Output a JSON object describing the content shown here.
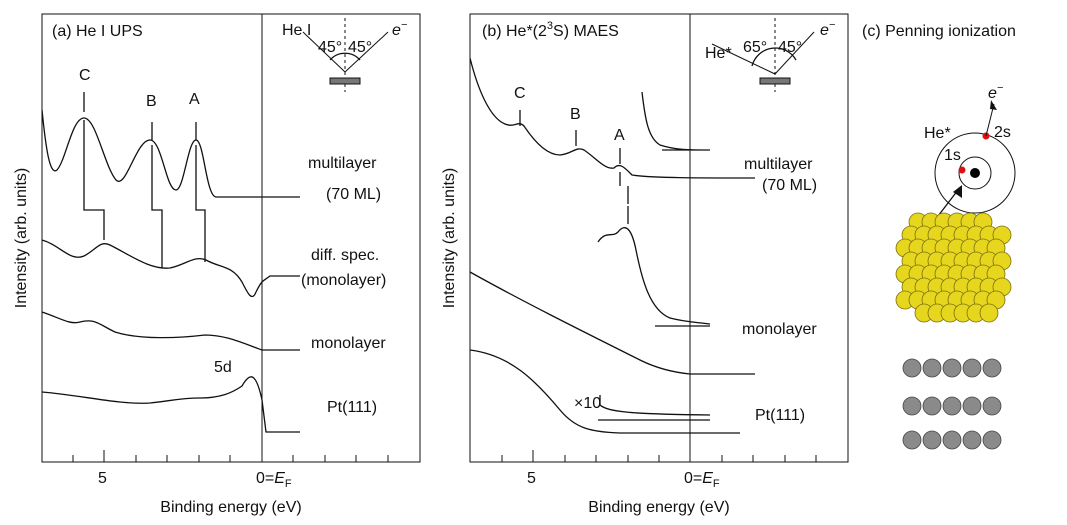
{
  "panel_a": {
    "title": "(a) He I UPS",
    "inset": {
      "beam": "He I",
      "angle_in": "45°",
      "angle_out": "45°",
      "electron": [
        "e",
        "−"
      ]
    },
    "peaks": [
      "C",
      "B",
      "A"
    ],
    "labels": [
      "multilayer",
      "(70 ML)",
      "diff. spec.",
      "(monolayer)",
      "monolayer",
      "5d",
      "Pt(111)"
    ],
    "x_ticks": [
      "5",
      [
        "0=",
        "E",
        "F"
      ]
    ],
    "x_label": "Binding energy (eV)",
    "y_label": "Intensity (arb. units)"
  },
  "panel_b": {
    "title": [
      "(b) He*(2",
      "3",
      "S) MAES"
    ],
    "inset": {
      "beam": "He*",
      "angle_in": "65°",
      "angle_out": "45°",
      "electron": [
        "e",
        "−"
      ]
    },
    "peaks": [
      "C",
      "B",
      "A"
    ],
    "labels": [
      "multilayer",
      "(70 ML)",
      "monolayer",
      "×10",
      "Pt(111)"
    ],
    "x_ticks": [
      "5",
      [
        "0=",
        "E",
        "F"
      ]
    ],
    "x_label": "Binding energy (eV)",
    "y_label": "Intensity (arb. units)"
  },
  "panel_c": {
    "title": "(c) Penning ionization",
    "electron": [
      "e",
      "−"
    ],
    "atom": "He*",
    "orbital_outer": "2s",
    "orbital_inner": "1s"
  }
}
